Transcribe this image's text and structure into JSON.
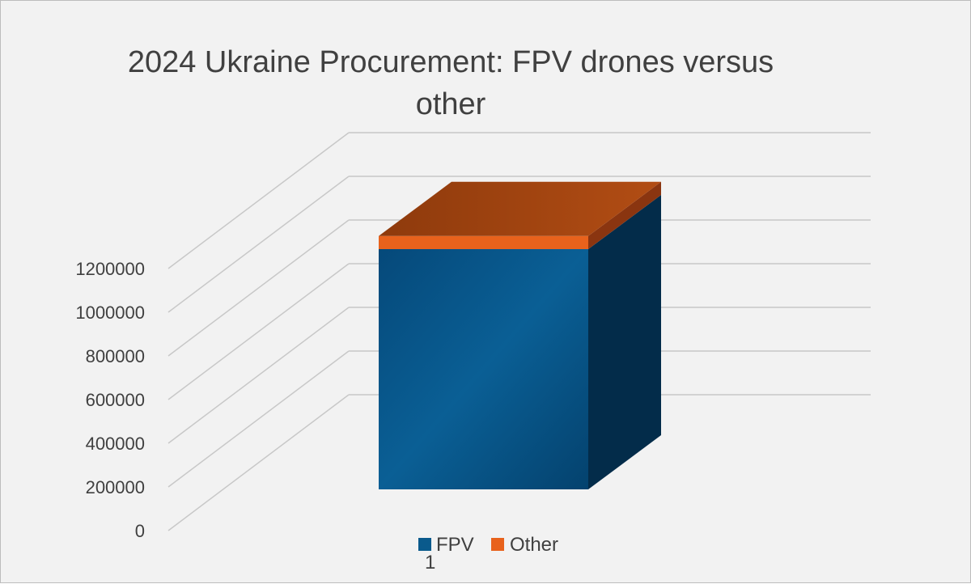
{
  "chart_data": {
    "type": "bar",
    "subtype": "3d-stacked-column",
    "title_lines": [
      "2024 Ukraine Procurement: FPV drones  versus",
      "other"
    ],
    "categories": [
      "1"
    ],
    "series": [
      {
        "name": "FPV",
        "values": [
          1100000
        ],
        "color": "#0a5a8c"
      },
      {
        "name": "Other",
        "values": [
          60000
        ],
        "color": "#e8621c"
      }
    ],
    "yticks": [
      "0",
      "200000",
      "400000",
      "600000",
      "800000",
      "1000000",
      "1200000"
    ],
    "ylim": [
      0,
      1200000
    ],
    "grid": true,
    "legend": "bottom"
  }
}
